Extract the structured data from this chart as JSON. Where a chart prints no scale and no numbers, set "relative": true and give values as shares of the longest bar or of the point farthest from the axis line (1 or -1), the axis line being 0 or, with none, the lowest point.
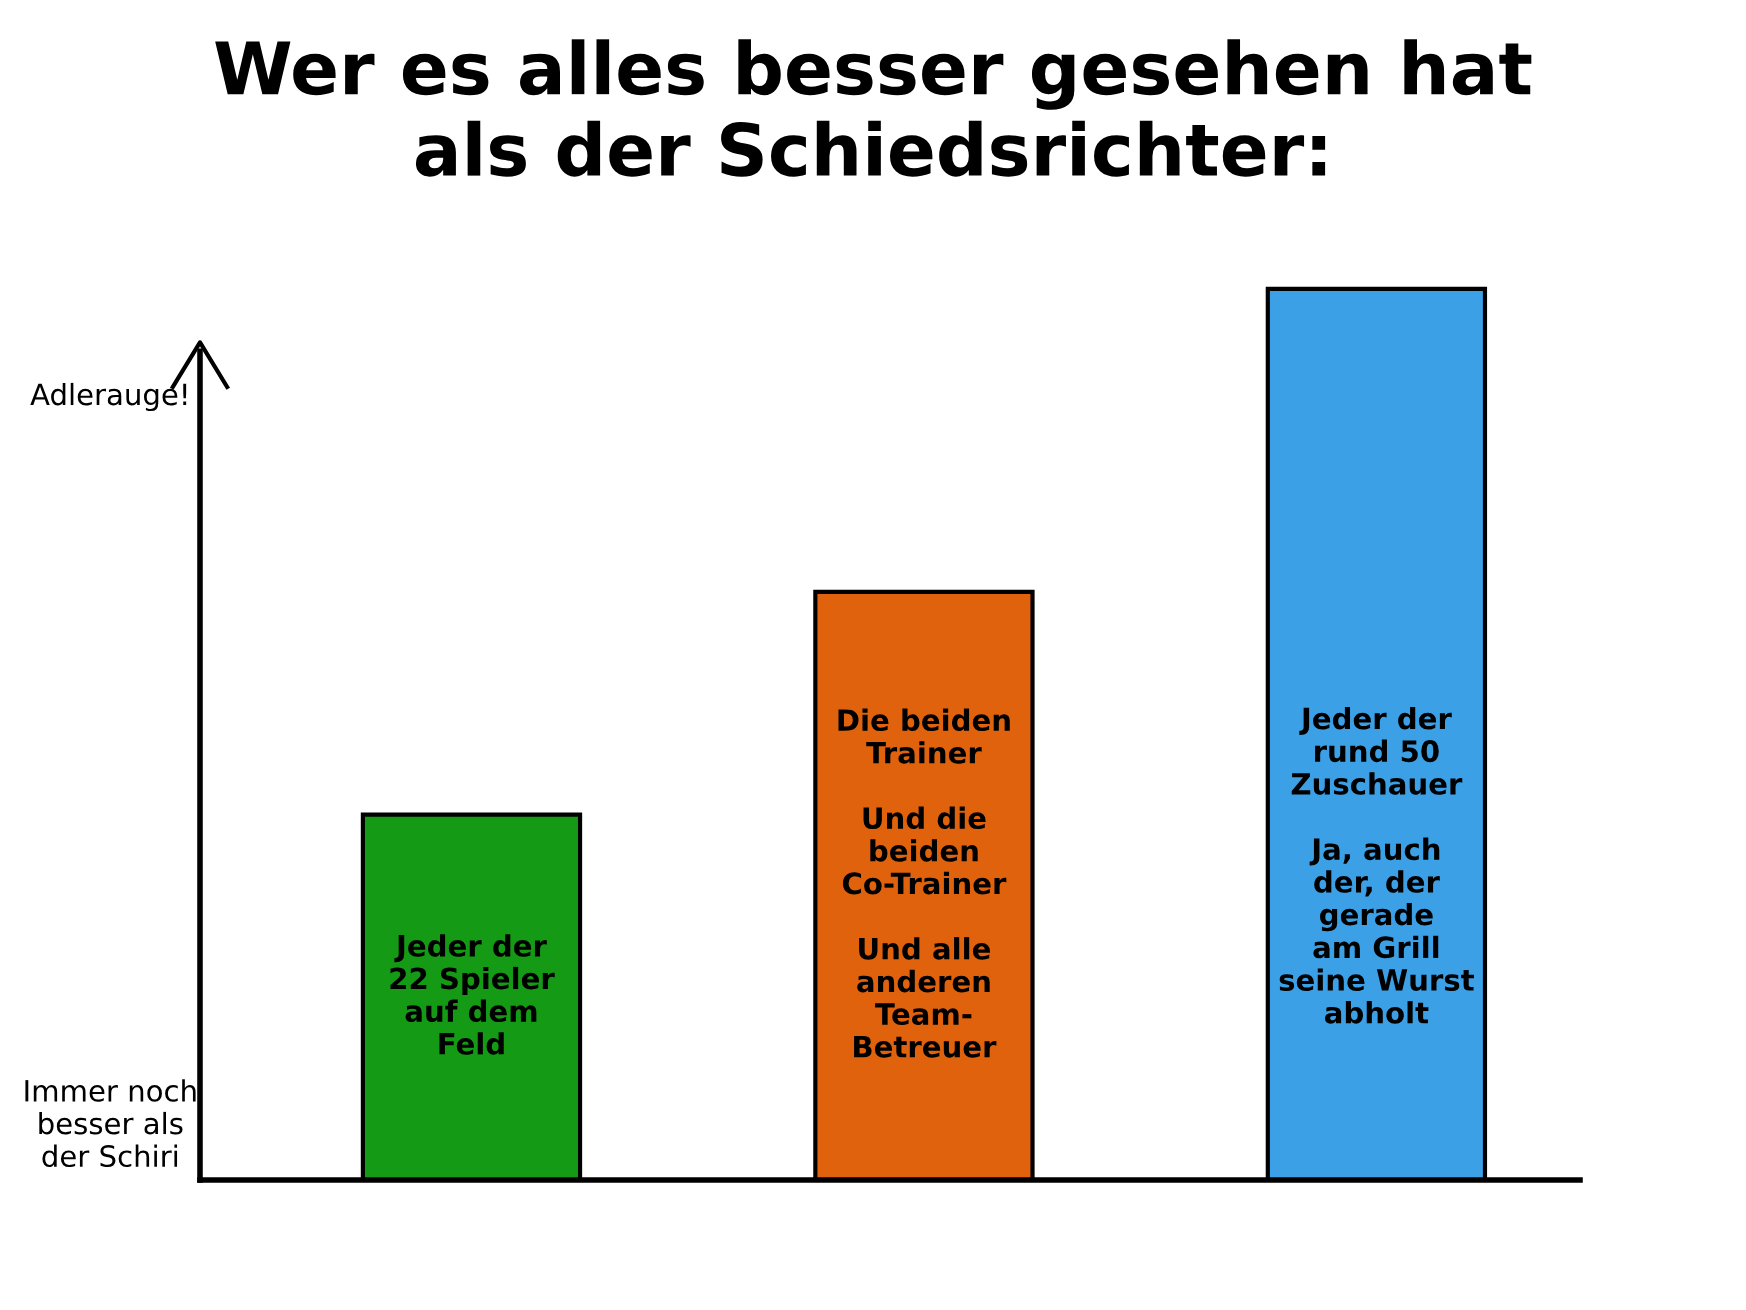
{
  "chart_data": {
    "type": "bar",
    "title": "Wer es alles besser gesehen hat\nals der Schiedsrichter:",
    "relative": true,
    "categories": [
      "Jeder der\n22 Spieler\nauf dem\nFeld",
      "Die beiden\nTrainer\n\nUnd die\nbeiden\nCo-Trainer\n\nUnd alle\nanderen\nTeam-\nBetreuer",
      "Jeder der\nrund 50\nZuschauer\n\nJa, auch\nder, der\ngerade\nam Grill\nseine Wurst\nabholt"
    ],
    "values": [
      0.41,
      0.66,
      1
    ],
    "colors": [
      "#149a14",
      "#e0620c",
      "#3ba0e6"
    ],
    "annotations": [
      "Immer noch\nbesser als\nder Schiri",
      "Adlerauge!"
    ],
    "legend": false
  }
}
